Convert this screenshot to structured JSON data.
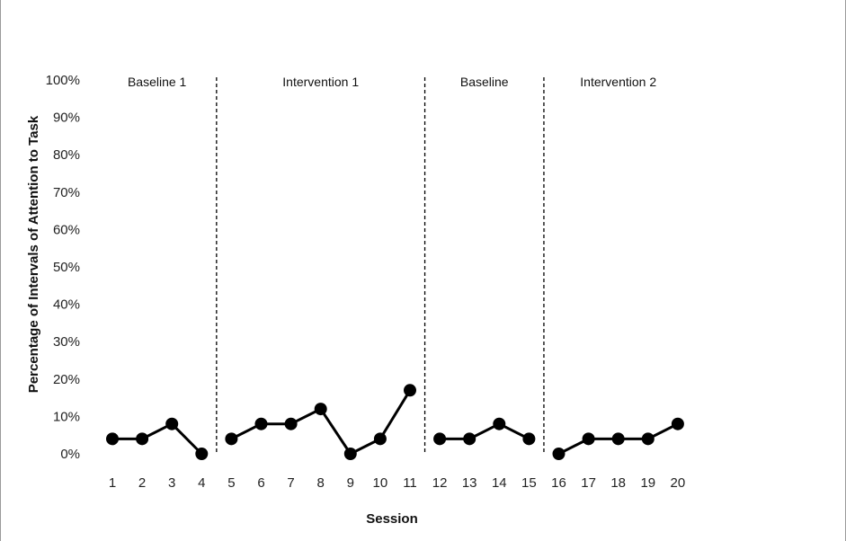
{
  "chart_data": {
    "type": "line",
    "title": "",
    "xlabel": "Session",
    "ylabel": "Percentage of Intervals of Attention to Task",
    "ylim": [
      0,
      100
    ],
    "yticks": [
      "0%",
      "10%",
      "20%",
      "30%",
      "40%",
      "50%",
      "60%",
      "70%",
      "80%",
      "90%",
      "100%"
    ],
    "xticks": [
      "1",
      "2",
      "3",
      "4",
      "5",
      "6",
      "7",
      "8",
      "9",
      "10",
      "11",
      "12",
      "13",
      "14",
      "15",
      "16",
      "17",
      "18",
      "19",
      "20"
    ],
    "grid": false,
    "legend": "none",
    "line_color": "#000000",
    "phases": [
      {
        "label": "Baseline 1",
        "sessions": [
          1,
          4
        ]
      },
      {
        "label": "Intervention 1",
        "sessions": [
          5,
          11
        ]
      },
      {
        "label": "Baseline",
        "sessions": [
          12,
          15
        ]
      },
      {
        "label": "Intervention 2",
        "sessions": [
          16,
          20
        ]
      }
    ],
    "series": [
      {
        "x": [
          1,
          2,
          3,
          4
        ],
        "values": [
          4,
          4,
          8,
          0
        ]
      },
      {
        "x": [
          5,
          6,
          7,
          8,
          9,
          10,
          11
        ],
        "values": [
          4,
          8,
          8,
          12,
          0,
          4,
          17
        ]
      },
      {
        "x": [
          12,
          13,
          14,
          15
        ],
        "values": [
          4,
          4,
          8,
          4
        ]
      },
      {
        "x": [
          16,
          17,
          18,
          19,
          20
        ],
        "values": [
          0,
          4,
          4,
          4,
          8
        ]
      }
    ]
  }
}
